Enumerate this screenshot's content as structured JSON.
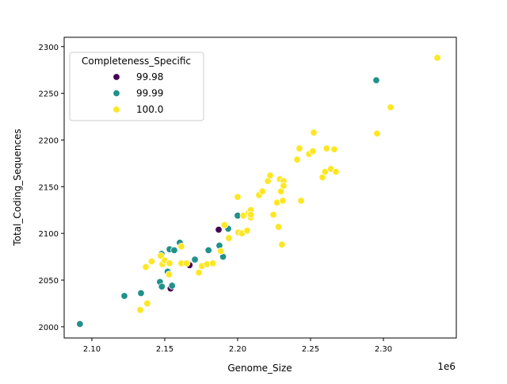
{
  "chart_data": {
    "type": "scatter",
    "xlabel": "Genome_Size",
    "ylabel": "Total_Coding_Sequences",
    "x_offset_label": "1e6",
    "xlim": [
      2.081,
      2.35
    ],
    "ylim": [
      1988,
      2310
    ],
    "x_unit_multiplier": 1000000,
    "xticks": [
      2.1,
      2.15,
      2.2,
      2.25,
      2.3
    ],
    "xtick_labels": [
      "2.10",
      "2.15",
      "2.20",
      "2.25",
      "2.30"
    ],
    "yticks": [
      2000,
      2050,
      2100,
      2150,
      2200,
      2250,
      2300
    ],
    "ytick_labels": [
      "2000",
      "2050",
      "2100",
      "2150",
      "2200",
      "2250",
      "2300"
    ],
    "grid": false,
    "legend": {
      "title": "Completeness_Specific",
      "placement": "top-left"
    },
    "series": [
      {
        "name": "99.98",
        "color": "#440154",
        "points": [
          [
            2.187,
            2104
          ],
          [
            2.167,
            2066
          ],
          [
            2.154,
            2041
          ]
        ]
      },
      {
        "name": "99.99",
        "color": "#21918c",
        "points": [
          [
            2.0918,
            2003
          ],
          [
            2.1223,
            2033
          ],
          [
            2.1337,
            2036
          ],
          [
            2.1467,
            2048
          ],
          [
            2.148,
            2043
          ],
          [
            2.1478,
            2078
          ],
          [
            2.1533,
            2083
          ],
          [
            2.1565,
            2082
          ],
          [
            2.152,
            2059
          ],
          [
            2.155,
            2044
          ],
          [
            2.1603,
            2090
          ],
          [
            2.1707,
            2072
          ],
          [
            2.18,
            2082
          ],
          [
            2.1875,
            2087
          ],
          [
            2.19,
            2075
          ],
          [
            2.1935,
            2105
          ],
          [
            2.2,
            2119
          ],
          [
            2.2951,
            2264
          ]
        ]
      },
      {
        "name": "100.0",
        "color": "#fde725",
        "points": [
          [
            2.1332,
            2018
          ],
          [
            2.138,
            2025
          ],
          [
            2.137,
            2064
          ],
          [
            2.141,
            2070
          ],
          [
            2.1473,
            2076
          ],
          [
            2.1484,
            2067
          ],
          [
            2.15,
            2071
          ],
          [
            2.1533,
            2068
          ],
          [
            2.153,
            2056
          ],
          [
            2.1614,
            2068
          ],
          [
            2.1614,
            2086
          ],
          [
            2.165,
            2068
          ],
          [
            2.1734,
            2058
          ],
          [
            2.1755,
            2065
          ],
          [
            2.179,
            2067
          ],
          [
            2.183,
            2068
          ],
          [
            2.1885,
            2081
          ],
          [
            2.191,
            2109
          ],
          [
            2.194,
            2095
          ],
          [
            2.2,
            2139
          ],
          [
            2.2005,
            2101
          ],
          [
            2.203,
            2100
          ],
          [
            2.204,
            2119
          ],
          [
            2.2065,
            2103
          ],
          [
            2.2076,
            2122
          ],
          [
            2.209,
            2117
          ],
          [
            2.209,
            2125
          ],
          [
            2.209,
            2120
          ],
          [
            2.2147,
            2141
          ],
          [
            2.217,
            2145
          ],
          [
            2.2207,
            2156
          ],
          [
            2.2223,
            2162
          ],
          [
            2.2245,
            2120
          ],
          [
            2.227,
            2133
          ],
          [
            2.228,
            2107
          ],
          [
            2.229,
            2158
          ],
          [
            2.2304,
            2088
          ],
          [
            2.2297,
            2145
          ],
          [
            2.2315,
            2156
          ],
          [
            2.2315,
            2151
          ],
          [
            2.231,
            2135
          ],
          [
            2.2408,
            2179
          ],
          [
            2.2424,
            2191
          ],
          [
            2.2435,
            2135
          ],
          [
            2.249,
            2185
          ],
          [
            2.2516,
            2188
          ],
          [
            2.2522,
            2208
          ],
          [
            2.2582,
            2160
          ],
          [
            2.26,
            2166
          ],
          [
            2.261,
            2191
          ],
          [
            2.264,
            2169
          ],
          [
            2.2663,
            2190
          ],
          [
            2.2674,
            2166
          ],
          [
            2.2956,
            2207
          ],
          [
            2.3049,
            2235
          ],
          [
            2.337,
            2288
          ]
        ]
      }
    ]
  }
}
